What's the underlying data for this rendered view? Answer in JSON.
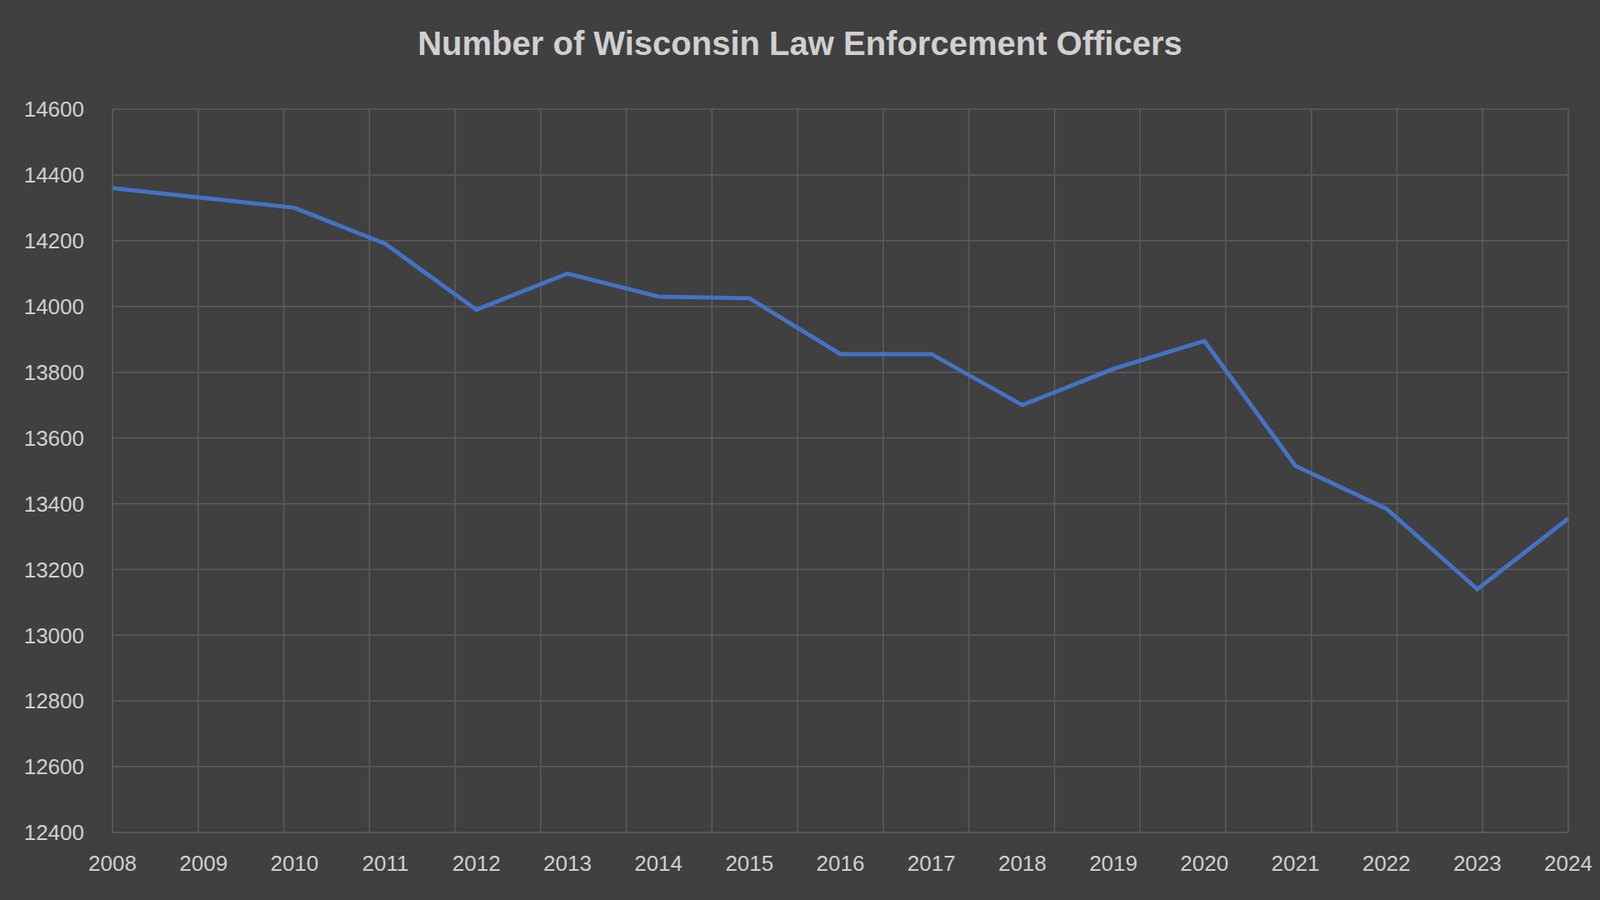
{
  "chart_data": {
    "type": "line",
    "title": "Number of Wisconsin Law Enforcement Officers",
    "categories": [
      "2008",
      "2009",
      "2010",
      "2011",
      "2012",
      "2013",
      "2014",
      "2015",
      "2016",
      "2017",
      "2018",
      "2019",
      "2020",
      "2021",
      "2022",
      "2023",
      "2024"
    ],
    "values": [
      14360,
      14330,
      14300,
      14190,
      13990,
      14100,
      14030,
      14025,
      13855,
      13855,
      13700,
      13810,
      13895,
      13515,
      13385,
      13140,
      13355
    ],
    "color": "#4472c4",
    "ylim": [
      12400,
      14600
    ],
    "yticks": [
      12400,
      12600,
      12800,
      13000,
      13200,
      13400,
      13600,
      13800,
      14000,
      14200,
      14400,
      14600
    ],
    "grid": true
  }
}
